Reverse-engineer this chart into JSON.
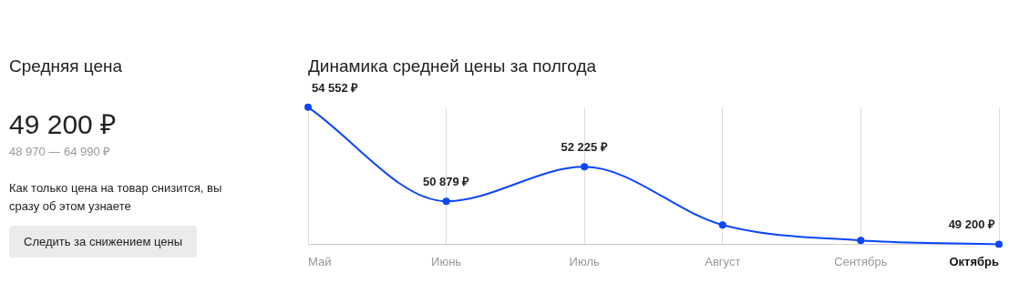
{
  "chart_data": [
    {
      "type": "other",
      "title": "Средняя цена",
      "subtitle": "49 200 ₽",
      "annotations": [
        "48 970 — 64 990 ₽",
        "Как только цена на товар снизится, вы сразу об этом узнаете",
        "Следить за снижением цены"
      ]
    },
    {
      "type": "line",
      "title": "Динамика средней цены за полгода",
      "categories": [
        "Май",
        "Июнь",
        "Июль",
        "Август",
        "Сентябрь",
        "Октябрь"
      ],
      "series": [
        {
          "color": "#0a45ff",
          "values": [
            54552,
            50879,
            52225,
            49950,
            49350,
            49200
          ],
          "value_labels": [
            "54 552 ₽",
            "50 879 ₽",
            "52 225 ₽",
            null,
            null,
            "49 200 ₽"
          ]
        }
      ],
      "tick_labels": "x",
      "grid": "x",
      "marker": "circle",
      "line_style": "solid",
      "legend": false
    }
  ]
}
